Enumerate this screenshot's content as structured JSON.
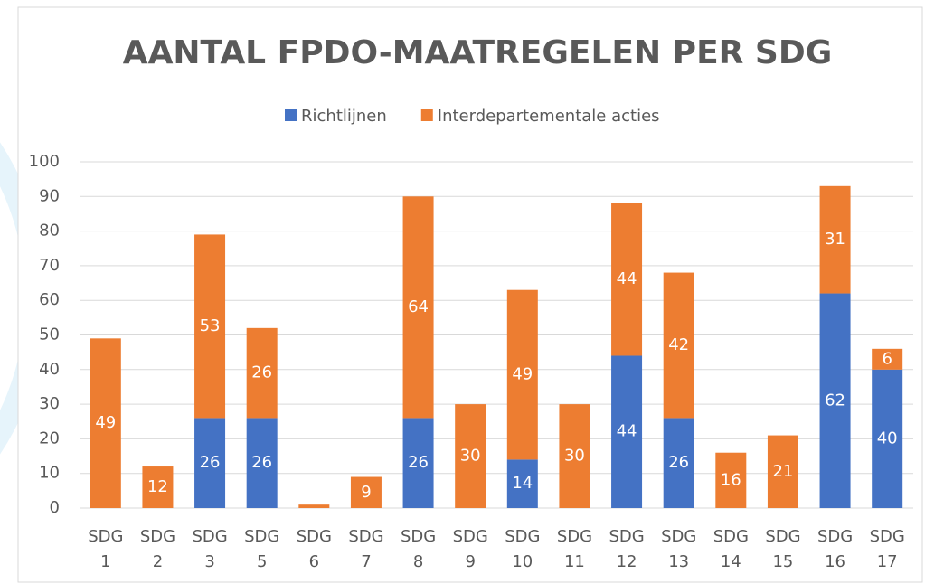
{
  "chart_data": {
    "type": "stacked_bar",
    "title": "AANTAL FPDO-MAATREGELEN PER SDG",
    "categories": [
      "SDG 1",
      "SDG 2",
      "SDG 3",
      "SDG 5",
      "SDG 6",
      "SDG 7",
      "SDG 8",
      "SDG 9",
      "SDG 10",
      "SDG 11",
      "SDG 12",
      "SDG 13",
      "SDG 14",
      "SDG 15",
      "SDG 16",
      "SDG 17"
    ],
    "series": [
      {
        "name": "Richtlijnen",
        "color": "#4472c4",
        "values": [
          0,
          0,
          26,
          26,
          0,
          0,
          26,
          0,
          14,
          0,
          44,
          26,
          0,
          0,
          62,
          40
        ]
      },
      {
        "name": "Interdepartementale acties",
        "color": "#ed7d31",
        "values": [
          49,
          12,
          53,
          26,
          1,
          9,
          64,
          30,
          49,
          30,
          44,
          42,
          16,
          21,
          31,
          6
        ]
      }
    ],
    "ylim": [
      0,
      100
    ],
    "yticks": [
      0,
      10,
      20,
      30,
      40,
      50,
      60,
      70,
      80,
      90,
      100
    ],
    "grid": true,
    "legend": "top"
  }
}
